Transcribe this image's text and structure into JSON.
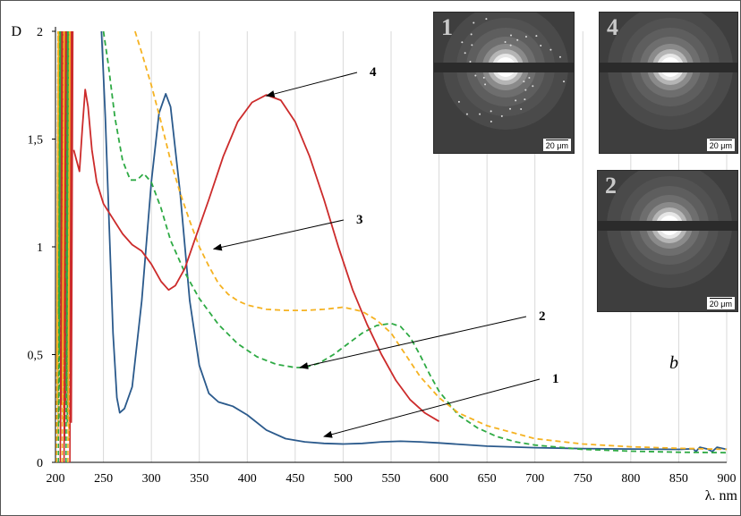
{
  "chart_data": {
    "type": "line",
    "ylabel": "D",
    "xlabel": "λ. nm",
    "xlim": [
      200,
      900
    ],
    "ylim": [
      0,
      2
    ],
    "x_ticks": [
      "200",
      "250",
      "300",
      "350",
      "400",
      "450",
      "500",
      "550",
      "600",
      "650",
      "700",
      "750",
      "800",
      "850",
      "900"
    ],
    "y_ticks": [
      "0",
      "0,5",
      "1",
      "1,5",
      "2"
    ],
    "grid": "vertical",
    "series": [
      {
        "name": "1",
        "color": "#2b5a8c",
        "style": "solid",
        "points": [
          [
            248,
            2.0
          ],
          [
            252,
            1.6
          ],
          [
            256,
            1.1
          ],
          [
            260,
            0.6
          ],
          [
            264,
            0.3
          ],
          [
            267,
            0.23
          ],
          [
            272,
            0.25
          ],
          [
            280,
            0.35
          ],
          [
            290,
            0.75
          ],
          [
            300,
            1.3
          ],
          [
            308,
            1.62
          ],
          [
            315,
            1.71
          ],
          [
            320,
            1.65
          ],
          [
            330,
            1.25
          ],
          [
            340,
            0.75
          ],
          [
            350,
            0.45
          ],
          [
            360,
            0.32
          ],
          [
            370,
            0.28
          ],
          [
            385,
            0.26
          ],
          [
            400,
            0.22
          ],
          [
            420,
            0.15
          ],
          [
            440,
            0.11
          ],
          [
            460,
            0.095
          ],
          [
            480,
            0.088
          ],
          [
            500,
            0.085
          ],
          [
            520,
            0.088
          ],
          [
            540,
            0.095
          ],
          [
            560,
            0.098
          ],
          [
            580,
            0.095
          ],
          [
            600,
            0.09
          ],
          [
            650,
            0.075
          ],
          [
            700,
            0.068
          ],
          [
            750,
            0.064
          ],
          [
            800,
            0.062
          ],
          [
            850,
            0.06
          ],
          [
            865,
            0.063
          ],
          [
            868,
            0.05
          ],
          [
            872,
            0.07
          ],
          [
            880,
            0.062
          ],
          [
            885,
            0.05
          ],
          [
            890,
            0.07
          ],
          [
            900,
            0.06
          ]
        ]
      },
      {
        "name": "2",
        "color": "#2eaa44",
        "style": "dashed",
        "points": [
          [
            250,
            2.0
          ],
          [
            255,
            1.85
          ],
          [
            262,
            1.6
          ],
          [
            270,
            1.4
          ],
          [
            278,
            1.31
          ],
          [
            285,
            1.31
          ],
          [
            292,
            1.34
          ],
          [
            300,
            1.3
          ],
          [
            310,
            1.18
          ],
          [
            320,
            1.03
          ],
          [
            335,
            0.88
          ],
          [
            350,
            0.76
          ],
          [
            370,
            0.64
          ],
          [
            390,
            0.55
          ],
          [
            410,
            0.49
          ],
          [
            430,
            0.455
          ],
          [
            450,
            0.44
          ],
          [
            460,
            0.44
          ],
          [
            475,
            0.46
          ],
          [
            490,
            0.5
          ],
          [
            505,
            0.55
          ],
          [
            520,
            0.6
          ],
          [
            535,
            0.635
          ],
          [
            550,
            0.645
          ],
          [
            560,
            0.63
          ],
          [
            570,
            0.58
          ],
          [
            580,
            0.5
          ],
          [
            590,
            0.41
          ],
          [
            600,
            0.33
          ],
          [
            620,
            0.22
          ],
          [
            640,
            0.16
          ],
          [
            660,
            0.12
          ],
          [
            680,
            0.095
          ],
          [
            700,
            0.08
          ],
          [
            750,
            0.06
          ],
          [
            800,
            0.052
          ],
          [
            850,
            0.047
          ],
          [
            900,
            0.045
          ]
        ]
      },
      {
        "name": "3",
        "color": "#f5b221",
        "style": "dashed",
        "points": [
          [
            283,
            2.0
          ],
          [
            290,
            1.9
          ],
          [
            300,
            1.75
          ],
          [
            310,
            1.58
          ],
          [
            320,
            1.4
          ],
          [
            330,
            1.25
          ],
          [
            340,
            1.12
          ],
          [
            350,
            1.0
          ],
          [
            360,
            0.91
          ],
          [
            370,
            0.83
          ],
          [
            380,
            0.78
          ],
          [
            390,
            0.75
          ],
          [
            400,
            0.73
          ],
          [
            420,
            0.71
          ],
          [
            440,
            0.705
          ],
          [
            460,
            0.705
          ],
          [
            480,
            0.71
          ],
          [
            500,
            0.72
          ],
          [
            520,
            0.7
          ],
          [
            535,
            0.66
          ],
          [
            550,
            0.6
          ],
          [
            565,
            0.5
          ],
          [
            580,
            0.4
          ],
          [
            600,
            0.3
          ],
          [
            620,
            0.23
          ],
          [
            650,
            0.17
          ],
          [
            700,
            0.11
          ],
          [
            750,
            0.085
          ],
          [
            800,
            0.072
          ],
          [
            850,
            0.065
          ],
          [
            900,
            0.06
          ]
        ]
      },
      {
        "name": "4",
        "color": "#cc2b2b",
        "style": "solid",
        "points": [
          [
            219,
            1.45
          ],
          [
            222,
            1.4
          ],
          [
            225,
            1.35
          ],
          [
            228,
            1.55
          ],
          [
            231,
            1.73
          ],
          [
            234,
            1.65
          ],
          [
            238,
            1.45
          ],
          [
            243,
            1.3
          ],
          [
            250,
            1.2
          ],
          [
            260,
            1.13
          ],
          [
            270,
            1.06
          ],
          [
            280,
            1.01
          ],
          [
            290,
            0.98
          ],
          [
            300,
            0.92
          ],
          [
            310,
            0.84
          ],
          [
            318,
            0.8
          ],
          [
            325,
            0.82
          ],
          [
            335,
            0.9
          ],
          [
            345,
            1.03
          ],
          [
            360,
            1.22
          ],
          [
            375,
            1.42
          ],
          [
            390,
            1.58
          ],
          [
            405,
            1.67
          ],
          [
            420,
            1.705
          ],
          [
            435,
            1.68
          ],
          [
            450,
            1.58
          ],
          [
            465,
            1.42
          ],
          [
            480,
            1.22
          ],
          [
            495,
            1.0
          ],
          [
            510,
            0.8
          ],
          [
            525,
            0.64
          ],
          [
            540,
            0.5
          ],
          [
            555,
            0.38
          ],
          [
            570,
            0.29
          ],
          [
            585,
            0.23
          ],
          [
            600,
            0.19
          ]
        ]
      }
    ],
    "annotations": [
      {
        "text": "4",
        "arrow_to": [
          420,
          1.7
        ]
      },
      {
        "text": "3",
        "arrow_to": [
          365,
          0.99
        ]
      },
      {
        "text": "2",
        "arrow_to": [
          455,
          0.44
        ]
      },
      {
        "text": "1",
        "arrow_to": [
          480,
          0.12
        ]
      }
    ],
    "panel_label": "b"
  },
  "insets": [
    {
      "label": "1",
      "scale": "20 μm"
    },
    {
      "label": "4",
      "scale": "20 μm"
    },
    {
      "label": "2",
      "scale": "20 μm"
    }
  ]
}
